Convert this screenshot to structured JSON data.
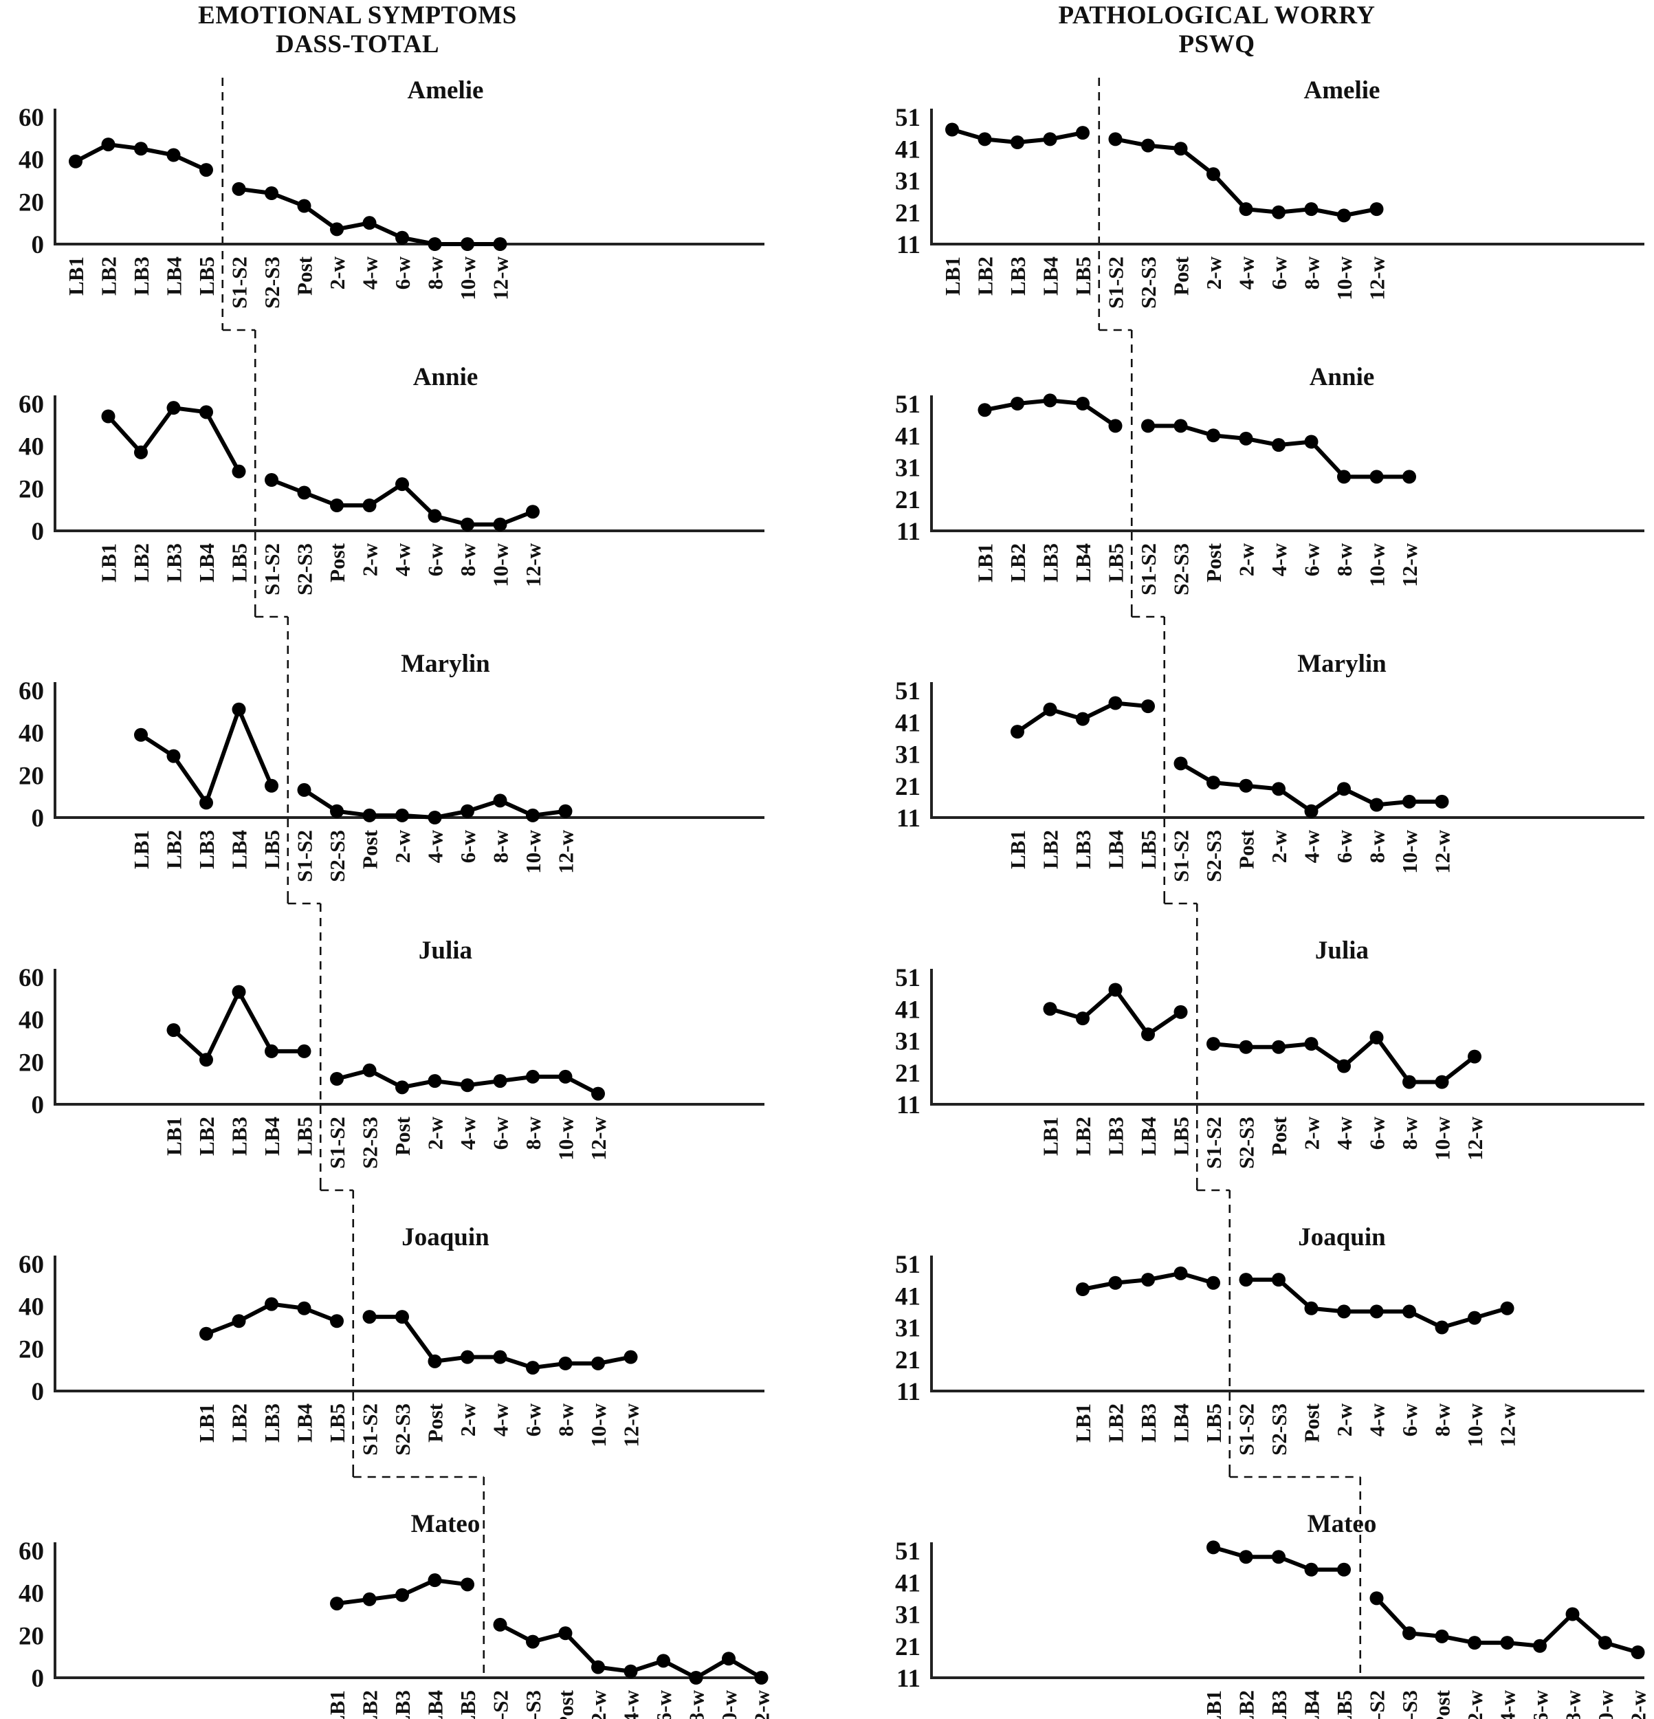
{
  "figure_titles": {
    "left_line1": "EMOTIONAL SYMPTOMS",
    "left_line2": "DASS-TOTAL",
    "right_line1": "PATHOLOGICAL WORRY",
    "right_line2": "PSWQ"
  },
  "chart_data": {
    "type": "line",
    "design": "multiple-baseline staggered single-case design, 6 participants x 2 measures",
    "grid": false,
    "legend": "none",
    "marker": "filled-circle",
    "line_color": "#000000",
    "phase_boundary_style": "vertical dashed staircase line between LB5 and S1-S2",
    "categories": [
      "LB1",
      "LB2",
      "LB3",
      "LB4",
      "LB5",
      "S1-S2",
      "S2-S3",
      "Post",
      "2-w",
      "4-w",
      "6-w",
      "8-w",
      "10-w",
      "12-w"
    ],
    "baseline_sessions": 5,
    "columns": [
      {
        "measure": "DASS",
        "title_line1": "EMOTIONAL SYMPTOMS",
        "title_line2": "DASS-TOTAL",
        "ylim": [
          0,
          60
        ],
        "yticks": [
          60,
          40,
          20,
          0
        ]
      },
      {
        "measure": "PSWQ",
        "title_line1": "PATHOLOGICAL WORRY",
        "title_line2": "PSWQ",
        "ylim": [
          11,
          51
        ],
        "yticks": [
          51,
          41,
          31,
          21,
          11
        ]
      }
    ],
    "participants": [
      {
        "name": "Amelie",
        "start_offset": 0,
        "series": {
          "DASS": [
            39,
            47,
            45,
            42,
            35,
            26,
            24,
            18,
            7,
            10,
            3,
            0,
            0,
            0
          ],
          "PSWQ": [
            47,
            44,
            43,
            44,
            46,
            44,
            42,
            41,
            33,
            22,
            21,
            22,
            20,
            22
          ]
        }
      },
      {
        "name": "Annie",
        "start_offset": 1,
        "series": {
          "DASS": [
            54,
            37,
            58,
            56,
            28,
            24,
            18,
            12,
            12,
            22,
            7,
            3,
            3,
            9
          ],
          "PSWQ": [
            49,
            51,
            52,
            51,
            44,
            44,
            44,
            41,
            40,
            38,
            39,
            28,
            28,
            28
          ]
        }
      },
      {
        "name": "Marylin",
        "start_offset": 2,
        "series": {
          "DASS": [
            39,
            29,
            7,
            51,
            15,
            13,
            3,
            1,
            1,
            0,
            3,
            8,
            1,
            3
          ],
          "PSWQ": [
            38,
            45,
            42,
            47,
            46,
            28,
            22,
            21,
            20,
            13,
            20,
            15,
            16,
            16
          ]
        }
      },
      {
        "name": "Julia",
        "start_offset": 3,
        "series": {
          "DASS": [
            35,
            21,
            53,
            25,
            25,
            12,
            16,
            8,
            11,
            9,
            11,
            13,
            13,
            5
          ],
          "PSWQ": [
            41,
            38,
            47,
            33,
            40,
            30,
            29,
            29,
            30,
            23,
            32,
            18,
            18,
            26
          ]
        }
      },
      {
        "name": "Joaquin",
        "start_offset": 4,
        "series": {
          "DASS": [
            27,
            33,
            41,
            39,
            33,
            35,
            35,
            14,
            16,
            16,
            11,
            13,
            13,
            16
          ],
          "PSWQ": [
            43,
            45,
            46,
            48,
            45,
            46,
            46,
            37,
            36,
            36,
            36,
            31,
            34,
            37
          ]
        }
      },
      {
        "name": "Mateo",
        "start_offset": 8,
        "series": {
          "DASS": [
            35,
            37,
            39,
            46,
            44,
            25,
            17,
            21,
            5,
            3,
            8,
            0,
            9,
            0
          ],
          "PSWQ": [
            52,
            49,
            49,
            45,
            45,
            36,
            25,
            24,
            22,
            22,
            21,
            31,
            22,
            19
          ]
        }
      }
    ]
  }
}
